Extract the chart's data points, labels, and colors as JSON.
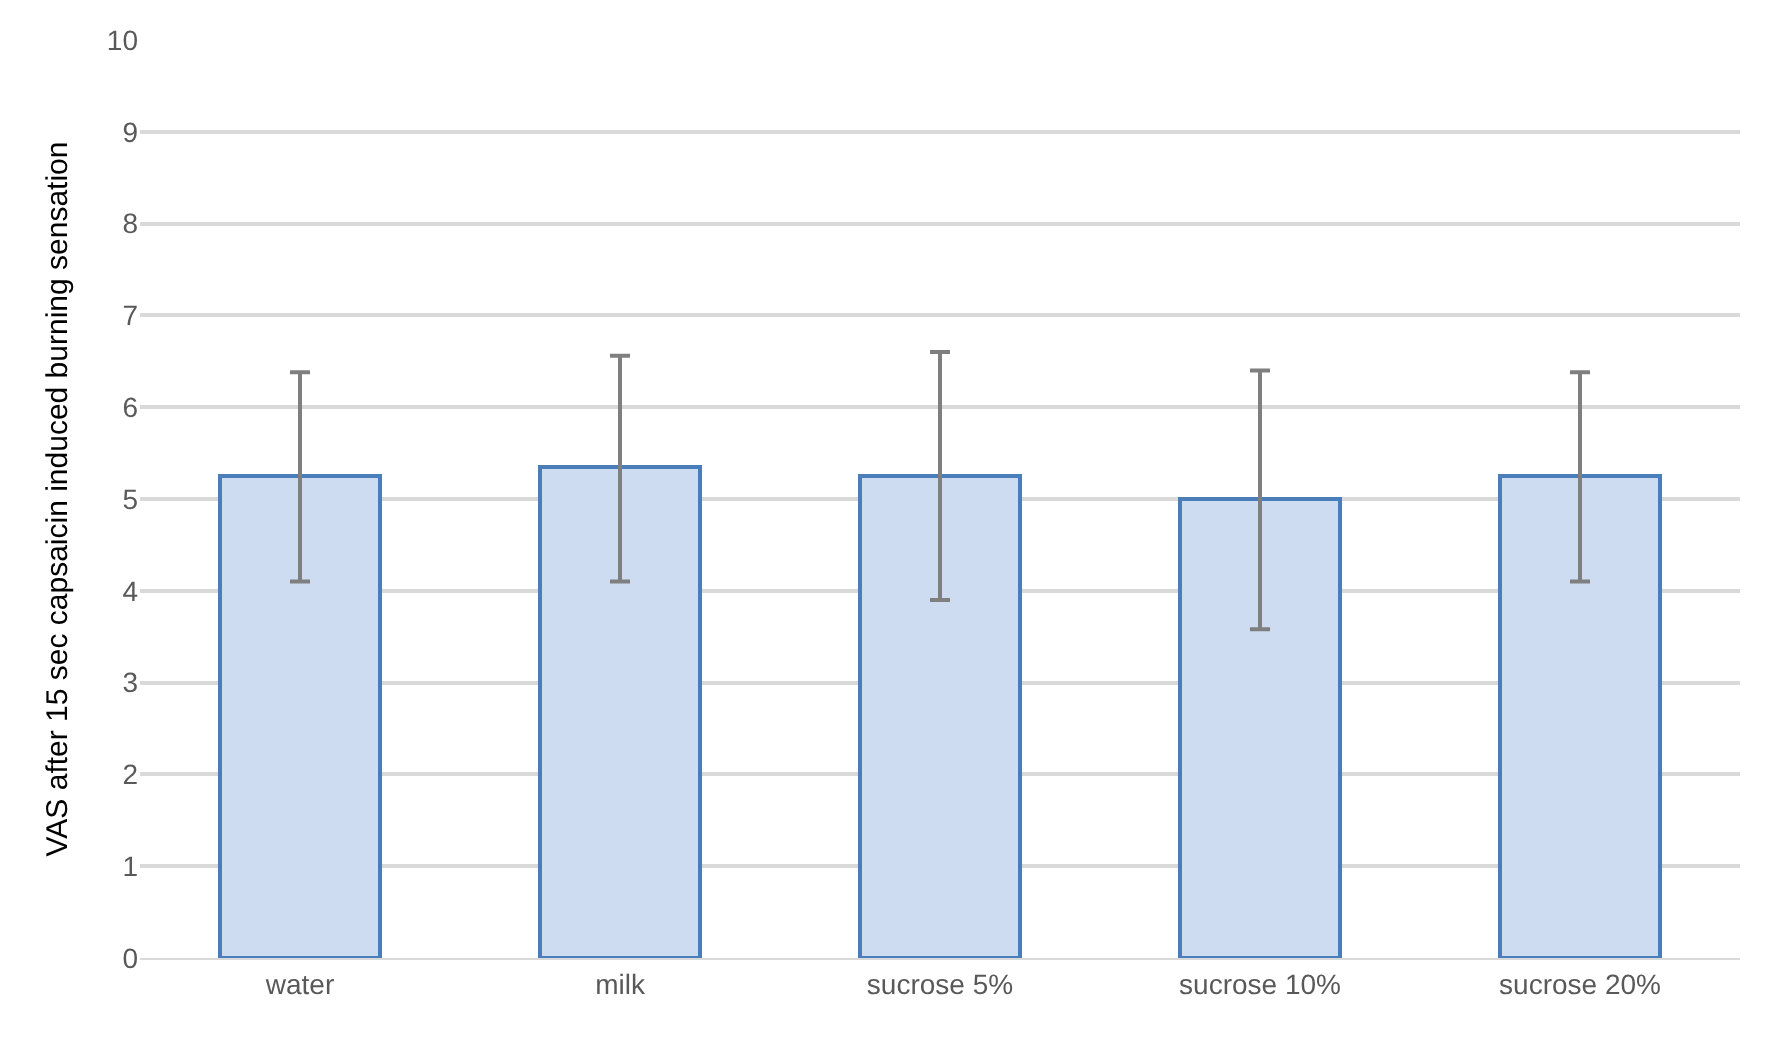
{
  "chart_data": {
    "type": "bar",
    "ylabel": "VAS after 15 sec capsaicin induced burning sensation",
    "categories": [
      "water",
      "milk",
      "sucrose 5%",
      "sucrose 10%",
      "sucrose 20%"
    ],
    "series": [
      {
        "color": "#cddcf0",
        "values": [
          5.25,
          5.35,
          5.25,
          5.0,
          5.25
        ],
        "errors": [
          [
            4.1,
            6.38
          ],
          [
            4.1,
            6.56
          ],
          [
            3.9,
            6.6
          ],
          [
            3.58,
            6.4
          ],
          [
            4.1,
            6.38
          ]
        ]
      }
    ],
    "ylim": [
      0,
      10
    ],
    "yticks": [
      0,
      1,
      2,
      3,
      4,
      5,
      6,
      7,
      8,
      9,
      10
    ],
    "grid": "y"
  }
}
